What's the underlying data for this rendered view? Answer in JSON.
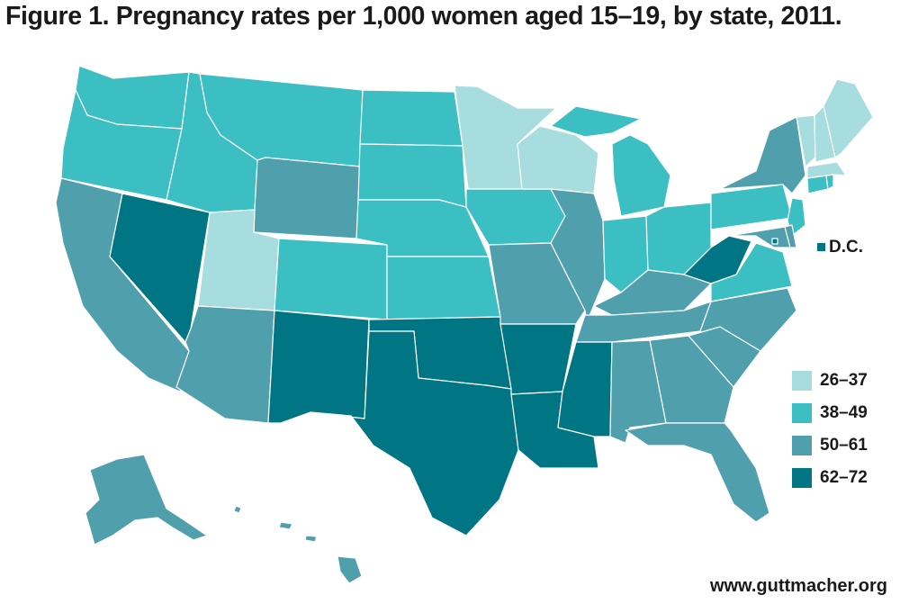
{
  "title": "Figure 1. Pregnancy rates per 1,000 women aged 15–19, by state, 2011.",
  "source": "www.guttmacher.org",
  "dc_label": "D.C.",
  "colors": {
    "c1": "#a8dde0",
    "c2": "#3bbfc3",
    "c3": "#4f9fad",
    "c4": "#007584"
  },
  "legend": [
    {
      "label": "26–37",
      "color": "#a8dde0"
    },
    {
      "label": "38–49",
      "color": "#3bbfc3"
    },
    {
      "label": "50–61",
      "color": "#4f9fad"
    },
    {
      "label": "62–72",
      "color": "#007584"
    }
  ],
  "states": {
    "WA": "38–49",
    "OR": "38–49",
    "CA": "50–61",
    "NV": "62–72",
    "ID": "38–49",
    "MT": "38–49",
    "WY": "50–61",
    "UT": "26–37",
    "AZ": "50–61",
    "CO": "38–49",
    "NM": "62–72",
    "ND": "38–49",
    "SD": "38–49",
    "NE": "38–49",
    "KS": "38–49",
    "OK": "62–72",
    "TX": "62–72",
    "MN": "26–37",
    "IA": "38–49",
    "MO": "50–61",
    "AR": "62–72",
    "LA": "62–72",
    "WI": "26–37",
    "IL": "50–61",
    "MI": "38–49",
    "IN": "38–49",
    "OH": "38–49",
    "KY": "50–61",
    "TN": "50–61",
    "MS": "62–72",
    "AL": "50–61",
    "GA": "50–61",
    "FL": "50–61",
    "SC": "50–61",
    "NC": "50–61",
    "VA": "38–49",
    "WV": "62–72",
    "PA": "38–49",
    "NY": "50–61",
    "NJ": "38–49",
    "DE": "50–61",
    "MD": "50–61",
    "DC": "62–72",
    "CT": "38–49",
    "RI": "38–49",
    "MA": "26–37",
    "VT": "26–37",
    "NH": "26–37",
    "ME": "26–37",
    "AK": "50–61",
    "HI": "50–61"
  }
}
